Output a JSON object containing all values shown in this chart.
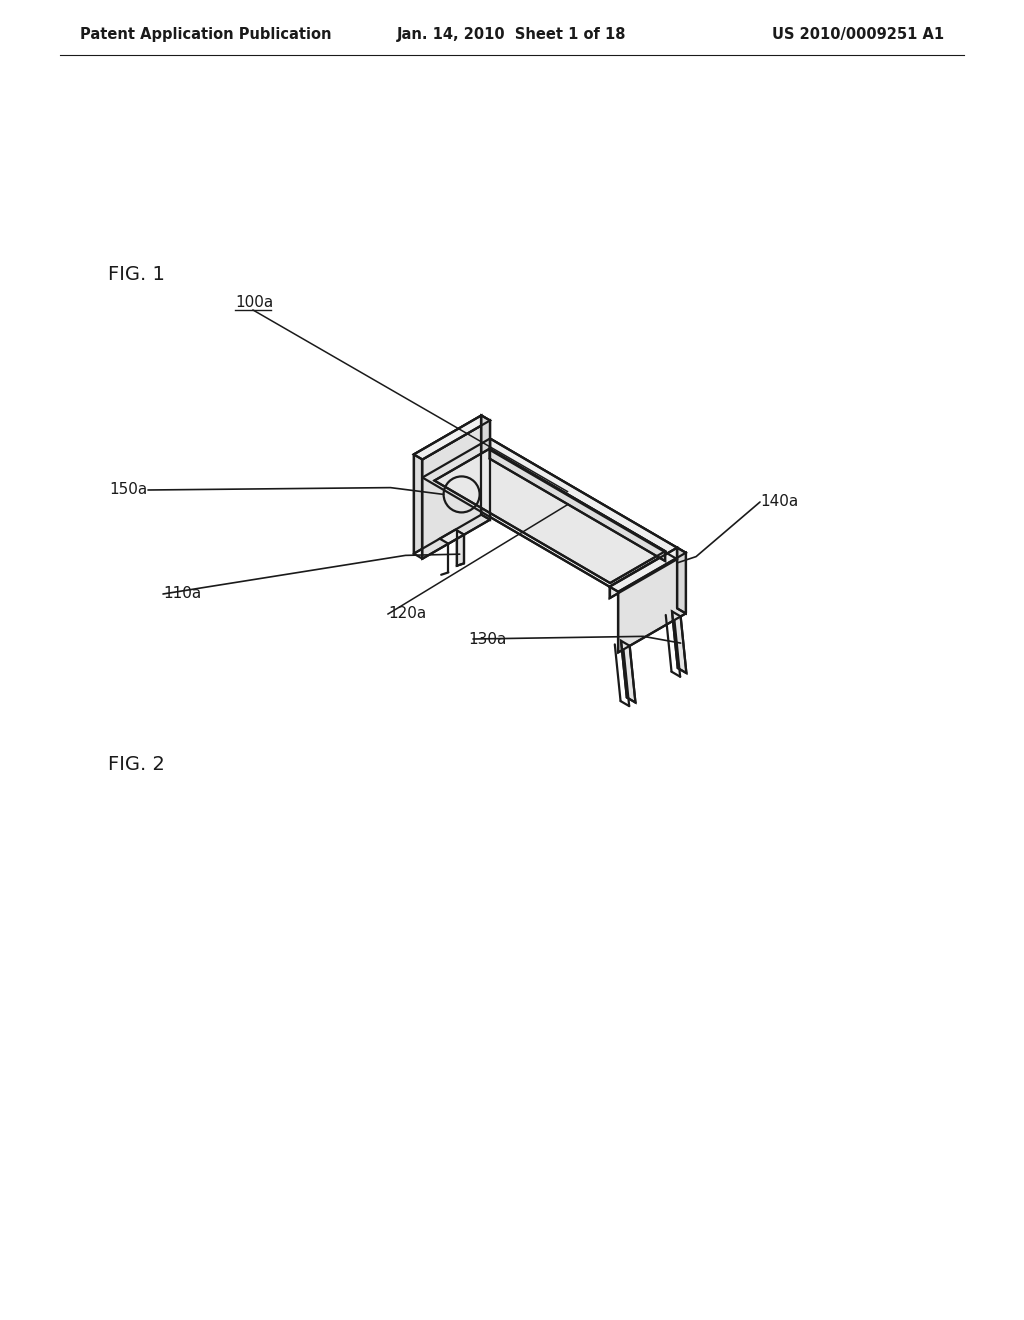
{
  "bg_color": "#ffffff",
  "line_color": "#1a1a1a",
  "line_width": 1.6,
  "header_left": "Patent Application Publication",
  "header_center": "Jan. 14, 2010  Sheet 1 of 18",
  "header_right": "US 2010/0009251 A1",
  "fig1_label": "FIG. 1",
  "fig2_label": "FIG. 2",
  "label_100a": "100a",
  "label_110a": "110a",
  "label_120a": "120a",
  "label_130a": "130a",
  "label_140a": "140a",
  "label_150a": "150a",
  "header_fontsize": 10.5,
  "fig_label_fontsize": 14,
  "part_label_fontsize": 11
}
